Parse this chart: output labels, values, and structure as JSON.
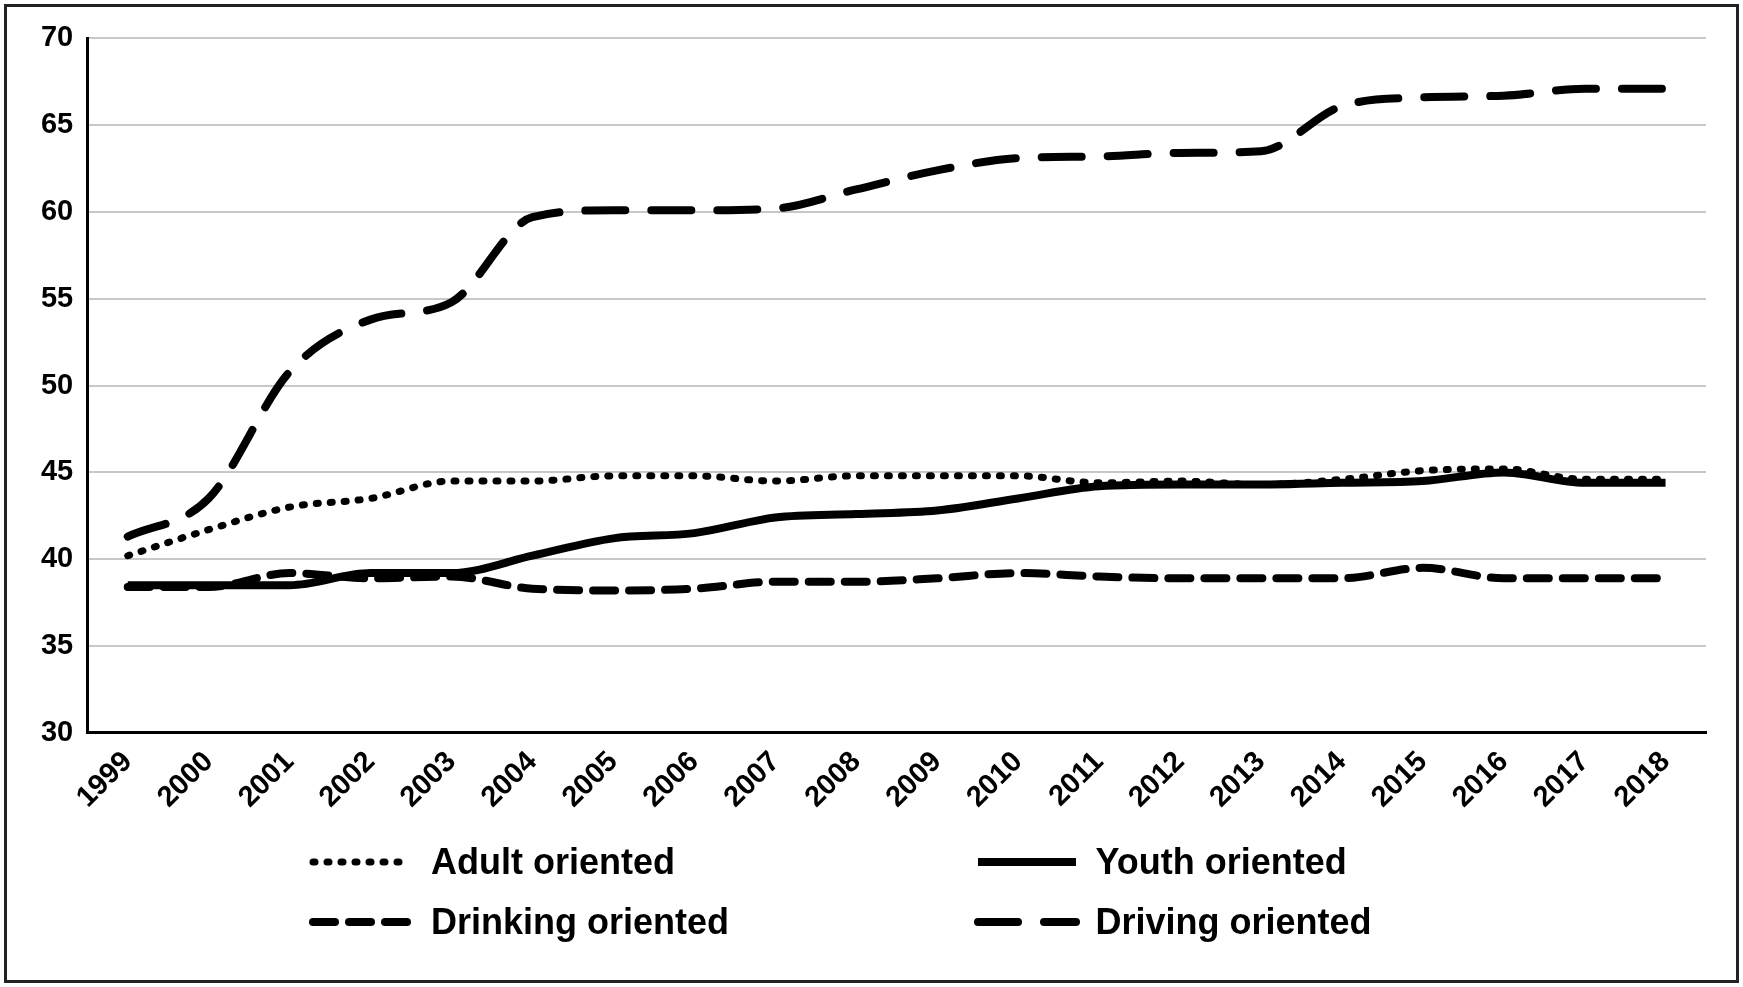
{
  "chart_data": {
    "type": "line",
    "categories": [
      "1999",
      "2000",
      "2001",
      "2002",
      "2003",
      "2004",
      "2005",
      "2006",
      "2007",
      "2008",
      "2009",
      "2010",
      "2011",
      "2012",
      "2013",
      "2014",
      "2015",
      "2016",
      "2017",
      "2018"
    ],
    "series": [
      {
        "name": "Adult oriented",
        "color": "#000000",
        "line_style": "dotted",
        "values": [
          40.2,
          41.7,
          43,
          43.5,
          44.5,
          44.5,
          44.8,
          44.8,
          44.5,
          44.8,
          44.8,
          44.8,
          44.4,
          44.5,
          44.3,
          44.6,
          45.1,
          45.2,
          44.6,
          44.6
        ]
      },
      {
        "name": "Youth oriented",
        "color": "#000000",
        "line_style": "solid",
        "values": [
          38.5,
          38.5,
          38.5,
          39.2,
          39.2,
          40.2,
          41.2,
          41.5,
          42.4,
          42.6,
          42.8,
          43.5,
          44.2,
          44.3,
          44.3,
          44.4,
          44.5,
          45.0,
          44.4,
          44.4
        ]
      },
      {
        "name": "Drinking oriented",
        "color": "#000000",
        "line_style": "dashed",
        "values": [
          38.4,
          38.4,
          39.2,
          38.9,
          39.0,
          38.3,
          38.2,
          38.3,
          38.7,
          38.7,
          38.9,
          39.2,
          39.0,
          38.9,
          38.9,
          38.9,
          39.5,
          38.9,
          38.9,
          38.9
        ]
      },
      {
        "name": "Driving oriented",
        "color": "#000000",
        "line_style": "dashed",
        "values": [
          41.3,
          43.5,
          50.8,
          53.8,
          54.8,
          59.7,
          60.1,
          60.1,
          60.2,
          61.3,
          62.4,
          63.1,
          63.2,
          63.4,
          63.5,
          66.1,
          66.6,
          66.7,
          67.1,
          67.1
        ]
      }
    ],
    "ylim": [
      30,
      70
    ],
    "yticks": [
      30,
      35,
      40,
      45,
      50,
      55,
      60,
      65,
      70
    ],
    "grid": "y",
    "legend": "bottom",
    "marker": "none"
  }
}
